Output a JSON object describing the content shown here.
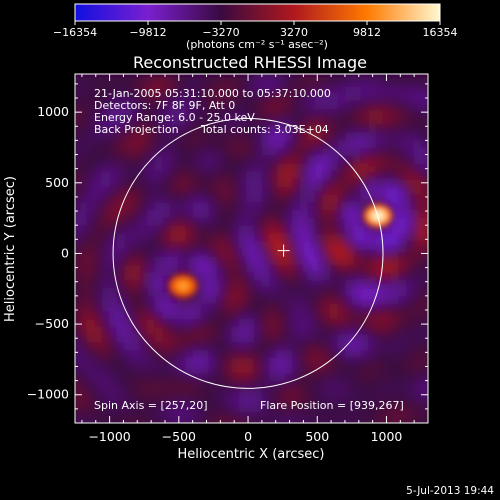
{
  "chart_data": {
    "type": "heatmap",
    "title": "Reconstructed RHESSI Image",
    "xlabel": "Heliocentric X (arcsec)",
    "ylabel": "Heliocentric Y (arcsec)",
    "xlim": [
      -1250,
      1300
    ],
    "ylim": [
      -1200,
      1270
    ],
    "x_ticks": [
      -1000,
      -500,
      0,
      500,
      1000
    ],
    "y_ticks": [
      1000,
      500,
      0,
      -500,
      -1000
    ],
    "x_tick_labels": [
      "−1000",
      "−500",
      "0",
      "500",
      "1000"
    ],
    "y_tick_labels": [
      "1000",
      "500",
      "0",
      "−500",
      "−1000"
    ],
    "colorbar": {
      "min": -16354,
      "max": 16354,
      "ticks": [
        -16354,
        -9812,
        -3270,
        3270,
        9812,
        16354
      ],
      "tick_labels": [
        "−16354",
        "−9812",
        "−3270",
        "3270",
        "9812",
        "16354"
      ],
      "units_label": "(photons cm⁻² s⁻¹ asec⁻²)",
      "colors": [
        "#1010e0",
        "#7a1fd0",
        "#3a0a40",
        "#b0181e",
        "#ff7a00",
        "#fff8d0"
      ]
    },
    "annotations": {
      "time_range": "21-Jan-2005 05:31:10.000 to 05:37:10.000",
      "detectors": "Detectors: 7F 8F 9F, Att 0",
      "energy": "Energy Range: 6.0 - 25.0 keV",
      "method": "Back Projection",
      "counts": "Total counts: 3.03E+04",
      "spin_axis": "Spin Axis = [257,20]",
      "flare_position": "Flare Position = [939,267]"
    },
    "solar_limb": {
      "center": [
        0,
        0
      ],
      "radius_arcsec": 975
    },
    "spin_axis_marker": [
      257,
      20
    ],
    "sources": [
      {
        "name": "flare",
        "x": 939,
        "y": 267,
        "peak": 16354
      },
      {
        "name": "secondary",
        "x": -470,
        "y": -230,
        "peak": 11500
      }
    ]
  },
  "footer": {
    "date": "5-Jul-2013 19:44"
  }
}
